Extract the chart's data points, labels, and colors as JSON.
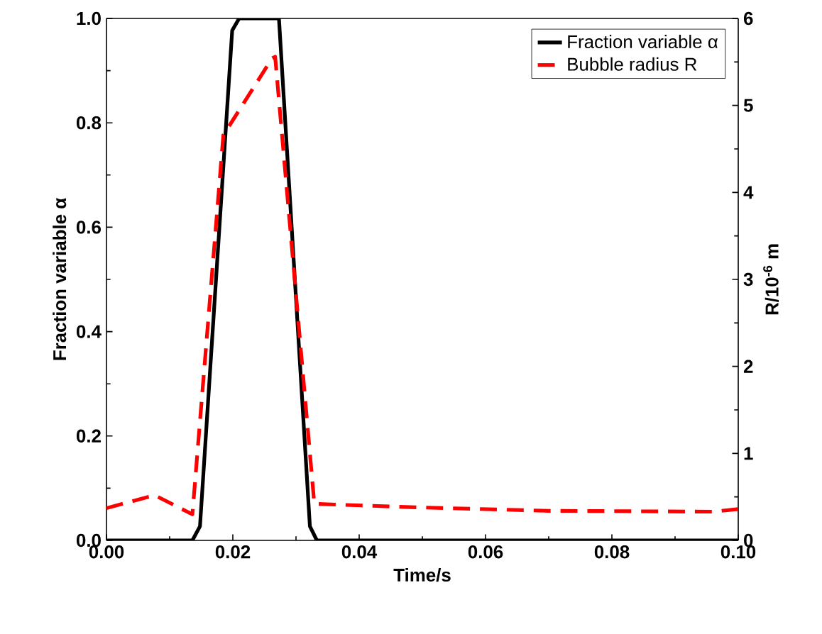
{
  "chart_data": {
    "type": "line",
    "xlabel": "Time/s",
    "ylabel": "Fraction variable α",
    "y2label": "R/10$^{-6}$ m",
    "xlim": [
      0,
      0.1
    ],
    "xticks": [
      {
        "value": 0,
        "label": "0.00"
      },
      {
        "value": 0.02,
        "label": "0.02"
      },
      {
        "value": 0.04,
        "label": "0.04"
      },
      {
        "value": 0.06,
        "label": "0.06"
      },
      {
        "value": 0.08,
        "label": "0.08"
      },
      {
        "value": 0.1,
        "label": "0.10"
      }
    ],
    "ylim": [
      0,
      1
    ],
    "yticks": [
      {
        "value": 0,
        "label": "0.0"
      },
      {
        "value": 0.2,
        "label": "0.2"
      },
      {
        "value": 0.4,
        "label": "0.4"
      },
      {
        "value": 0.6,
        "label": "0.6"
      },
      {
        "value": 0.8,
        "label": "0.8"
      },
      {
        "value": 1,
        "label": "1.0"
      }
    ],
    "y2lim": [
      0,
      6
    ],
    "y2ticks": [
      0,
      1,
      2,
      3,
      4,
      5,
      6
    ],
    "legend": "top right",
    "grid": false,
    "marker": "none",
    "series": [
      {
        "name": "Fraction variable α",
        "color": "#000000",
        "line_style": "solid",
        "x": [
          0,
          0.0136,
          0.0148,
          0.0199,
          0.021,
          0.0273,
          0.0322,
          0.0333,
          0.1
        ],
        "values": [
          0,
          0,
          0.027,
          0.977,
          1,
          1,
          0.027,
          0,
          0
        ]
      },
      {
        "name": "Bubble radius R",
        "color": "#ff0000",
        "line_style": "dashed",
        "axis": "y2",
        "x": [
          0,
          0.0076,
          0.0136,
          0.0185,
          0.02,
          0.0262,
          0.0267,
          0.0329,
          0.049,
          0.07,
          0.096,
          0.1
        ],
        "values": [
          0.37,
          0.52,
          0.3,
          4.66,
          4.83,
          5.54,
          5.56,
          0.42,
          0.38,
          0.34,
          0.33,
          0.36
        ]
      }
    ]
  }
}
